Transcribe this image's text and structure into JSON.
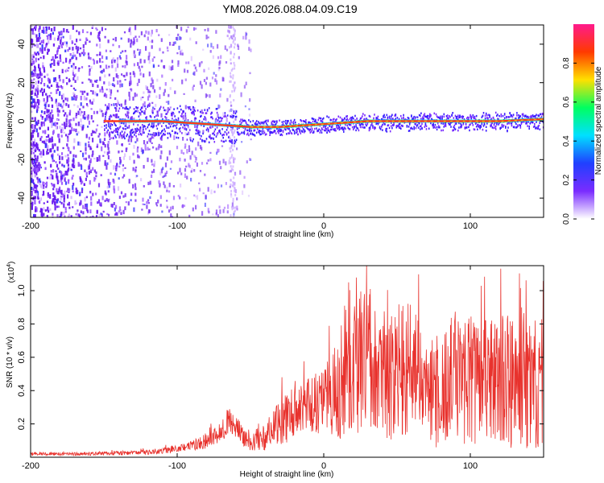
{
  "figure": {
    "title": "YM08.2026.088.04.09.C19"
  },
  "chart_data": [
    {
      "type": "heatmap",
      "name": "spectrogram",
      "xlabel": "Height of straight line (km)",
      "ylabel": "Frequency (Hz)",
      "xlim": [
        -200,
        150
      ],
      "ylim": [
        -50,
        50
      ],
      "xticks": [
        -200,
        -100,
        0,
        100
      ],
      "xtick_labels": [
        "-200",
        "-100",
        "0",
        "100"
      ],
      "yticks": [
        -40,
        -20,
        0,
        20,
        40
      ],
      "ytick_labels": [
        "-40",
        "-20",
        "0",
        "20",
        "40"
      ],
      "ridge": [
        {
          "x": -150,
          "y": 0
        },
        {
          "x": -110,
          "y": 0
        },
        {
          "x": -90,
          "y": -1
        },
        {
          "x": -70,
          "y": -2
        },
        {
          "x": -50,
          "y": -3
        },
        {
          "x": -30,
          "y": -3
        },
        {
          "x": -10,
          "y": -2
        },
        {
          "x": 10,
          "y": -1
        },
        {
          "x": 30,
          "y": 0
        },
        {
          "x": 60,
          "y": 0
        },
        {
          "x": 90,
          "y": 0
        },
        {
          "x": 120,
          "y": 0
        },
        {
          "x": 150,
          "y": 1
        }
      ],
      "noise_region": [
        -200,
        -60
      ],
      "colorbar": {
        "label": "Normalized spectral amplitude",
        "range": [
          0,
          1
        ],
        "ticks": [
          0.0,
          0.2,
          0.4,
          0.6,
          0.8
        ],
        "tick_labels": [
          "0.0",
          "0.2",
          "0.4",
          "0.6",
          "0.8"
        ],
        "colors": [
          "#ffffff",
          "#7a2cff",
          "#2040ff",
          "#00e0ff",
          "#00ff60",
          "#ffe000",
          "#ff3a00",
          "#ff1a8c"
        ]
      }
    },
    {
      "type": "line",
      "name": "snr",
      "xlabel": "Height of straight line (km)",
      "ylabel": "SNR (10 * v/v)",
      "multiplier": "(x10",
      "multiplier_exponent": "4",
      "multiplier_close": ")",
      "xlim": [
        -200,
        150
      ],
      "ylim": [
        0,
        1.15
      ],
      "xticks": [
        -200,
        -100,
        0,
        100
      ],
      "xtick_labels": [
        "-200",
        "-100",
        "0",
        "100"
      ],
      "yticks": [
        0.2,
        0.4,
        0.6,
        0.8,
        1.0
      ],
      "ytick_labels": [
        "0.2",
        "0.4",
        "0.6",
        "0.8",
        "1.0"
      ],
      "series": [
        {
          "name": "SNR",
          "color": "#e8322d",
          "x": [
            -200,
            -180,
            -160,
            -140,
            -120,
            -100,
            -90,
            -80,
            -70,
            -65,
            -60,
            -55,
            -50,
            -40,
            -30,
            -20,
            -10,
            0,
            10,
            20,
            25,
            30,
            40,
            50,
            60,
            70,
            80,
            90,
            100,
            110,
            120,
            130,
            140,
            150
          ],
          "y": [
            0.02,
            0.02,
            0.02,
            0.025,
            0.03,
            0.05,
            0.07,
            0.1,
            0.15,
            0.22,
            0.18,
            0.12,
            0.1,
            0.12,
            0.2,
            0.28,
            0.3,
            0.35,
            0.4,
            0.5,
            0.6,
            0.55,
            0.45,
            0.48,
            0.55,
            0.38,
            0.4,
            0.5,
            0.45,
            0.48,
            0.45,
            0.45,
            0.42,
            0.45
          ],
          "spread": [
            0.01,
            0.01,
            0.01,
            0.012,
            0.015,
            0.02,
            0.03,
            0.05,
            0.06,
            0.08,
            0.08,
            0.06,
            0.06,
            0.08,
            0.15,
            0.15,
            0.18,
            0.2,
            0.3,
            0.38,
            0.45,
            0.4,
            0.35,
            0.4,
            0.4,
            0.3,
            0.35,
            0.4,
            0.4,
            0.35,
            0.4,
            0.4,
            0.4,
            0.38
          ]
        }
      ]
    }
  ]
}
